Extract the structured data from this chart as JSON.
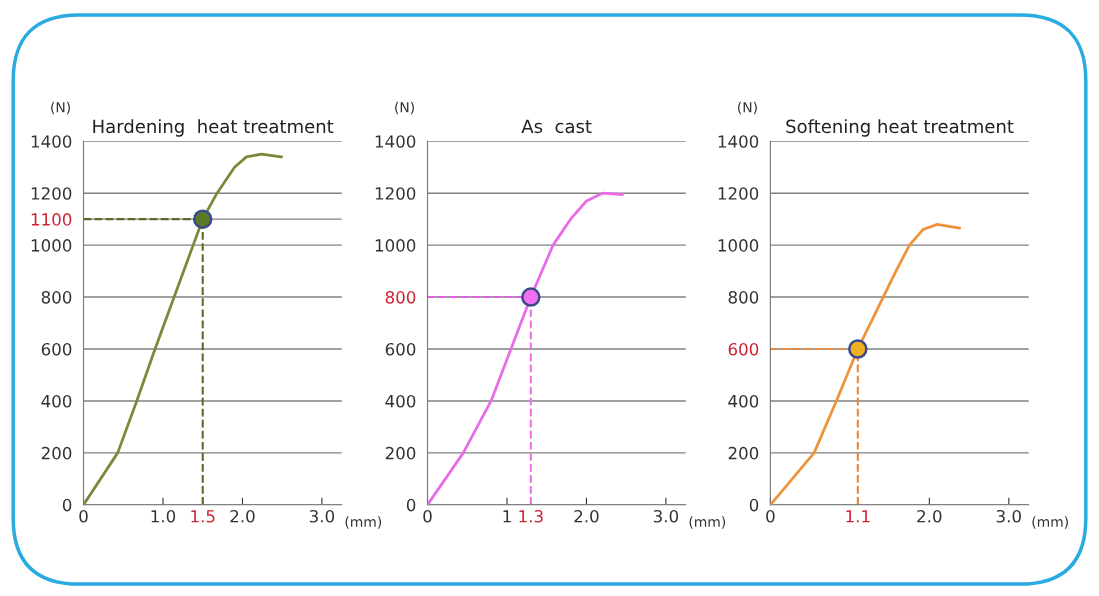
{
  "chart_data": [
    {
      "type": "line",
      "title": "Hardening  heat treatment",
      "xlabel": "(mm)",
      "ylabel": "(N)",
      "xlim": [
        0,
        3.25
      ],
      "xticks": [
        0,
        {
          "value": 1.0,
          "label": "1.0"
        },
        {
          "value": 1.5,
          "label": "1.5"
        },
        {
          "value": 2.0,
          "label": "2.0"
        },
        {
          "value": 3.0,
          "label": "3.0"
        }
      ],
      "ylim": [
        0,
        1400
      ],
      "yticks": [
        0,
        200,
        400,
        600,
        800,
        1000,
        1100,
        1200,
        1400
      ],
      "grid": "y",
      "series": [
        {
          "color": "#7a8a3a",
          "x": [
            0,
            0.43,
            0.67,
            0.9,
            1.14,
            1.38,
            1.5,
            1.68,
            1.9,
            2.05,
            2.24,
            2.49
          ],
          "values": [
            0,
            200,
            400,
            600,
            800,
            1000,
            1100,
            1200,
            1300,
            1340,
            1350,
            1340
          ]
        },
        {
          "type": "scatter",
          "color": "#5a7a2a",
          "marker": "circle",
          "x": [
            1.5
          ],
          "values": [
            1100
          ]
        }
      ],
      "ref_lines": [
        {
          "axis": "x",
          "value": 1.5,
          "color": "#5a6a2a",
          "line_style": "dashed"
        },
        {
          "axis": "y",
          "value": 1100,
          "color": "#5a6a2a",
          "line_style": "dashed"
        }
      ]
    },
    {
      "type": "line",
      "title": "As  cast",
      "xlabel": "(mm)",
      "ylabel": "(N)",
      "xlim": [
        0,
        3.25
      ],
      "xticks": [
        0,
        {
          "value": 1,
          "label": "1"
        },
        {
          "value": 1.3,
          "label": "1.3"
        },
        {
          "value": 2.0,
          "label": "2.0"
        },
        {
          "value": 3.0,
          "label": "3.0"
        }
      ],
      "ylim": [
        0,
        1400
      ],
      "yticks": [
        0,
        200,
        400,
        600,
        800,
        1000,
        1200,
        1400
      ],
      "grid": "y",
      "series": [
        {
          "color": "#e86be8",
          "x": [
            0,
            0.45,
            0.8,
            1.05,
            1.3,
            1.58,
            1.8,
            2.0,
            2.2,
            2.45
          ],
          "values": [
            0,
            200,
            400,
            600,
            800,
            1000,
            1100,
            1170,
            1200,
            1195
          ]
        },
        {
          "type": "scatter",
          "color": "#f070f0",
          "marker": "circle",
          "x": [
            1.3
          ],
          "values": [
            800
          ]
        }
      ],
      "ref_lines": [
        {
          "axis": "x",
          "value": 1.3,
          "color": "#f070f0",
          "line_style": "dashed"
        },
        {
          "axis": "y",
          "value": 800,
          "color": "#e060e0",
          "line_style": "dashed"
        }
      ]
    },
    {
      "type": "line",
      "title": "Softening heat treatment",
      "xlabel": "(mm)",
      "ylabel": "(N)",
      "xlim": [
        0,
        3.25
      ],
      "xticks": [
        0,
        {
          "value": 1.1,
          "label": "1.1"
        },
        {
          "value": 2.0,
          "label": "2.0"
        },
        {
          "value": 3.0,
          "label": "3.0"
        }
      ],
      "ylim": [
        0,
        1400
      ],
      "yticks": [
        0,
        200,
        400,
        600,
        800,
        1000,
        1200,
        1400
      ],
      "grid": "y",
      "series": [
        {
          "color": "#f0923a",
          "x": [
            0,
            0.55,
            0.83,
            1.1,
            1.42,
            1.58,
            1.75,
            1.92,
            2.1,
            2.38
          ],
          "values": [
            0,
            200,
            400,
            600,
            800,
            900,
            1000,
            1060,
            1080,
            1065
          ]
        },
        {
          "type": "scatter",
          "color": "#f0b020",
          "marker": "circle",
          "x": [
            1.1
          ],
          "values": [
            600
          ]
        }
      ],
      "ref_lines": [
        {
          "axis": "x",
          "value": 1.1,
          "color": "#e8863a",
          "line_style": "dashed"
        },
        {
          "axis": "y",
          "value": 600,
          "color": "#e8863a",
          "line_style": "dashed"
        }
      ]
    }
  ]
}
